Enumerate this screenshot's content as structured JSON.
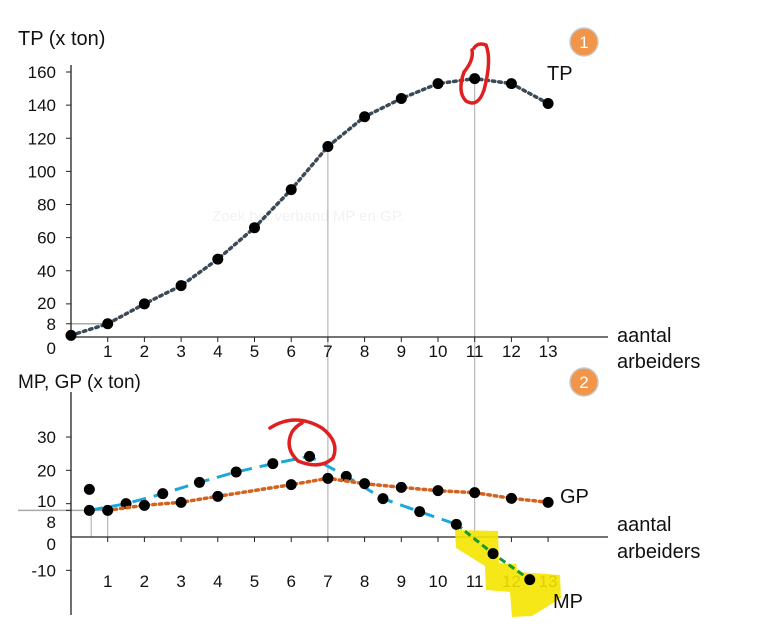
{
  "chart_data": [
    {
      "type": "line",
      "title": "",
      "ylabel": "TP (x ton)",
      "xlabel": "aantal arbeiders",
      "badge": "1",
      "xlim": [
        0,
        13
      ],
      "ylim": [
        0,
        160
      ],
      "x_ticks": [
        "1",
        "2",
        "3",
        "4",
        "5",
        "6",
        "7",
        "8",
        "9",
        "10",
        "11",
        "12",
        "13"
      ],
      "y_ticks": [
        "0",
        "8",
        "20",
        "40",
        "60",
        "80",
        "100",
        "120",
        "140",
        "160"
      ],
      "watermark": "Zoek het verband MP en GP.",
      "series": [
        {
          "name": "TP",
          "color": "#3b4a56",
          "style": "dotted",
          "x": [
            0,
            1,
            2,
            3,
            4,
            5,
            6,
            7,
            8,
            9,
            10,
            11,
            12,
            13
          ],
          "y": [
            1,
            8,
            20,
            31,
            47,
            66,
            89,
            115,
            133,
            144,
            153,
            156,
            153,
            141
          ]
        }
      ],
      "reference_lines_x": [
        7,
        11
      ],
      "reference_line_y": 8,
      "annotations": {
        "highlight_color": "#e02020",
        "badge_color": "#f0954a"
      }
    },
    {
      "type": "line",
      "title": "",
      "ylabel": "MP, GP (x ton)",
      "xlabel": "aantal arbeiders",
      "badge": "2",
      "xlim": [
        0,
        13
      ],
      "ylim": [
        -13,
        35
      ],
      "x_ticks": [
        "1",
        "2",
        "3",
        "4",
        "5",
        "6",
        "7",
        "8",
        "9",
        "10",
        "11",
        "12",
        "13"
      ],
      "y_ticks": [
        "-10",
        "0",
        "8",
        "10",
        "20",
        "30"
      ],
      "series": [
        {
          "name": "MP",
          "color": "#1ba8d8",
          "negative_color": "#1a9a2a",
          "style": "dashed",
          "x": [
            0.5,
            1.5,
            2.5,
            3.5,
            4.5,
            5.5,
            6.5,
            7.5,
            8.5,
            9.5,
            10.5,
            11.5,
            12.5
          ],
          "y": [
            8,
            10,
            13,
            16.4,
            19.5,
            22,
            24.2,
            18.2,
            11.5,
            7.6,
            3.8,
            -5,
            -12.8
          ]
        },
        {
          "name": "GP",
          "color": "#d4621e",
          "style": "dotted",
          "x": [
            1,
            2,
            3,
            4,
            6,
            7,
            8,
            9,
            10,
            11,
            12,
            13
          ],
          "y": [
            8,
            9.5,
            10.4,
            12.2,
            15.7,
            17.6,
            16,
            14.9,
            13.9,
            13.3,
            11.6,
            10.4
          ]
        }
      ],
      "extra_points": [
        {
          "x": 0.5,
          "y": 14.3
        }
      ],
      "reference_lines_x": [
        7,
        11
      ],
      "reference_line_y": 8,
      "annotations": {
        "highlight_color": "#e02020",
        "marker_color": "#f5e400",
        "badge_color": "#f0954a"
      }
    }
  ]
}
